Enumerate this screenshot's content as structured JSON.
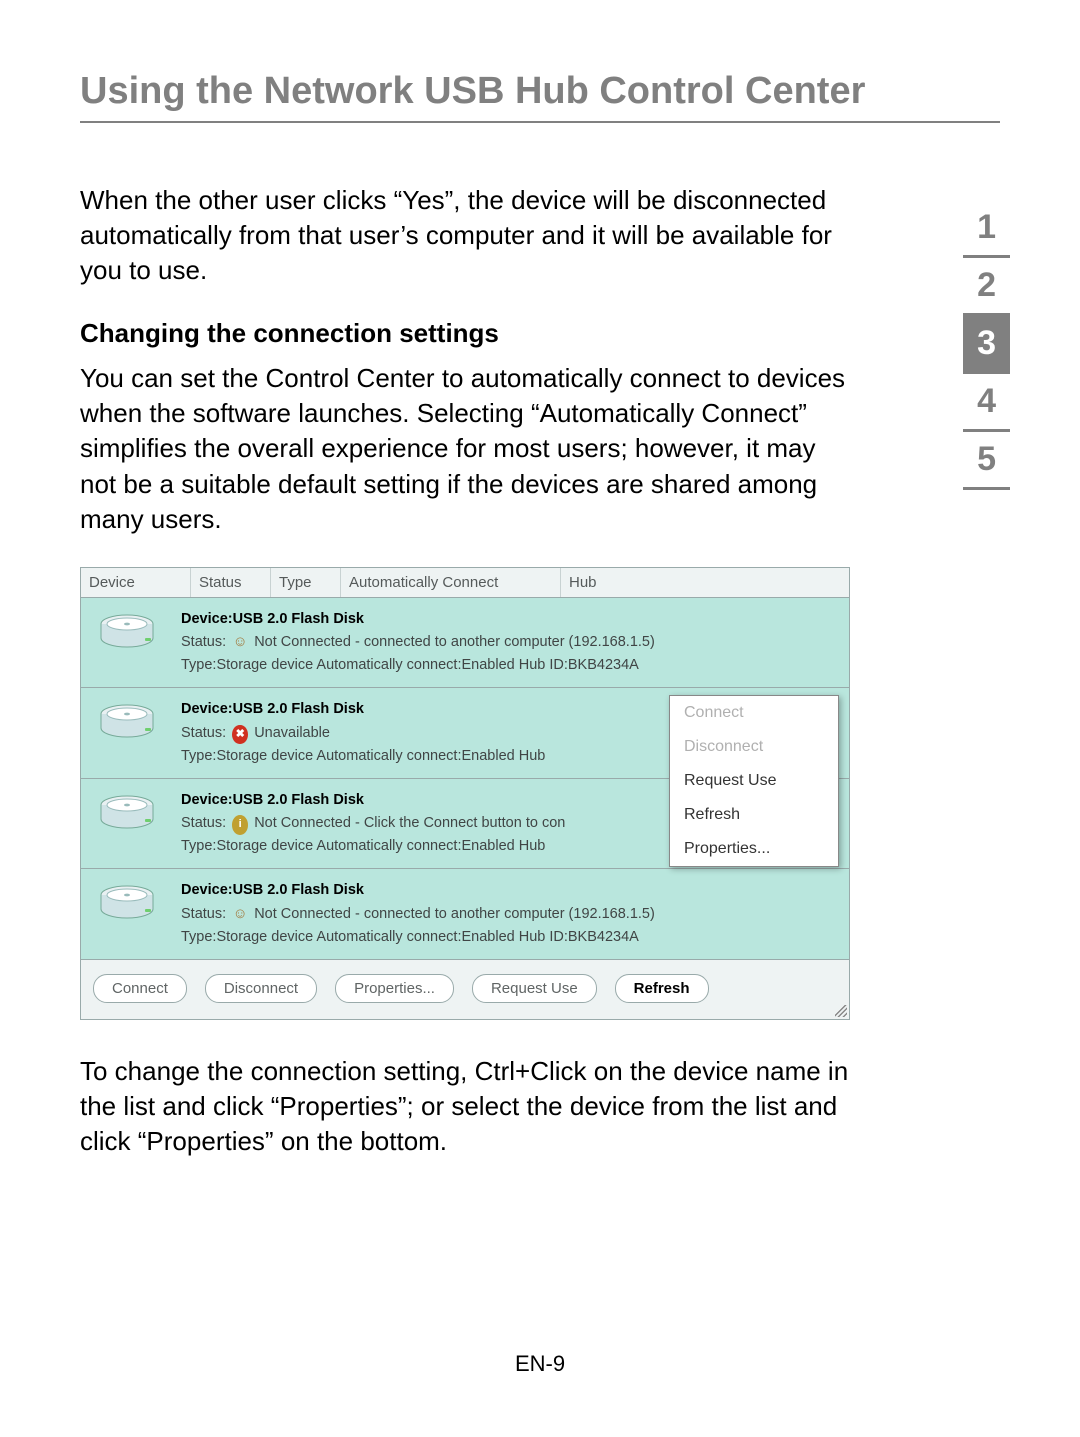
{
  "page": {
    "title": "Using the Network USB Hub Control Center",
    "intro_para": "When the other user clicks “Yes”, the device will be disconnected automatically from that user’s computer and it will be available for you to use.",
    "subheading": "Changing the connection settings",
    "para2": "You can set the Control Center to automatically connect to devices when the software launches. Selecting “Automatically Connect” simplifies the overall experience for most users; however, it may not be a suitable default setting if the devices are shared among many users.",
    "para3": "To change the connection setting, Ctrl+Click on the device name in the list and click “Properties”; or select the device from the list and click “Properties” on the bottom.",
    "page_number": "EN-9"
  },
  "section_nav": {
    "items": [
      "1",
      "2",
      "3",
      "4",
      "5"
    ],
    "active_index": 2
  },
  "screenshot": {
    "headers": {
      "device": "Device",
      "status": "Status",
      "type": "Type",
      "auto": "Automatically Connect",
      "hub": "Hub"
    },
    "row_bg": "#b9e6dd",
    "devices": [
      {
        "device_label": "Device:USB 2.0 Flash Disk",
        "status_icon": "person",
        "status_text": "Not Connected - connected to another computer (192.168.1.5)",
        "type_line": "Type:Storage device   Automatically connect:Enabled   Hub ID:BKB4234A"
      },
      {
        "device_label": "Device:USB 2.0 Flash Disk",
        "status_icon": "x",
        "status_text": "Unavailable",
        "type_line": "Type:Storage device   Automatically connect:Enabled   Hub"
      },
      {
        "device_label": "Device:USB 2.0 Flash Disk",
        "status_icon": "info",
        "status_text": "Not Connected - Click the Connect button to con",
        "type_line": "Type:Storage device   Automatically connect:Enabled   Hub"
      },
      {
        "device_label": "Device:USB 2.0 Flash Disk",
        "status_icon": "person",
        "status_text": "Not Connected - connected to another computer (192.168.1.5)",
        "type_line": "Type:Storage device   Automatically connect:Enabled   Hub ID:BKB4234A"
      }
    ],
    "context_menu": [
      {
        "label": "Connect",
        "disabled": true
      },
      {
        "label": "Disconnect",
        "disabled": true
      },
      {
        "label": "Request Use",
        "disabled": false
      },
      {
        "label": "Refresh",
        "disabled": false
      },
      {
        "label": "Properties...",
        "disabled": false
      }
    ],
    "buttons": [
      {
        "label": "Connect",
        "active": false
      },
      {
        "label": "Disconnect",
        "active": false
      },
      {
        "label": "Properties...",
        "active": false
      },
      {
        "label": "Request Use",
        "active": false
      },
      {
        "label": "Refresh",
        "active": true
      }
    ],
    "status_label": "Status:"
  }
}
